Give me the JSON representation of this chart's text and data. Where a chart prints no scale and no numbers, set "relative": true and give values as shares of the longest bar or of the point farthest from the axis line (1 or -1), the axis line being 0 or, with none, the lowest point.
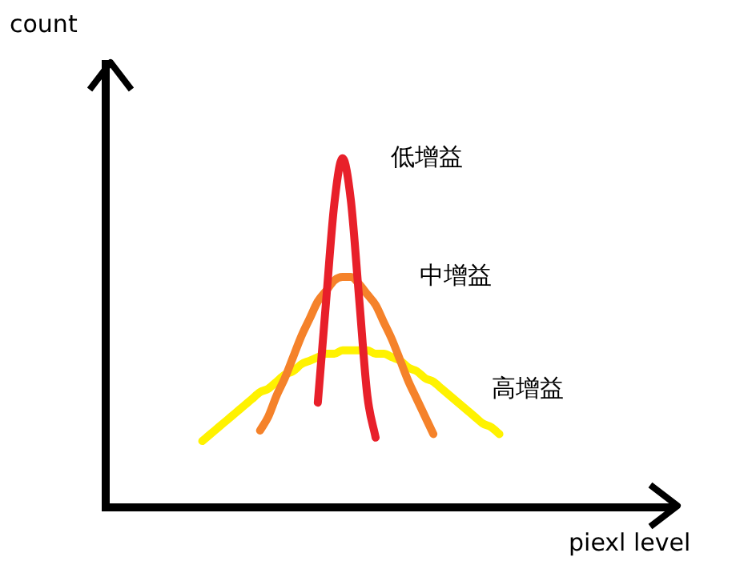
{
  "chart_data": {
    "type": "line",
    "relative": true,
    "xlabel": "piexl level",
    "annotations": [
      "count"
    ],
    "legend": false,
    "grid": false,
    "marker": "none",
    "line_style": "solid",
    "tick_labels": false,
    "categories": [
      null,
      null,
      null,
      null,
      null,
      null,
      null,
      null,
      null,
      null,
      null,
      null,
      null,
      null,
      null,
      null,
      null,
      null,
      null,
      null,
      null,
      null,
      null,
      null,
      null,
      null,
      null,
      null,
      null,
      null,
      null,
      null,
      null,
      null,
      null,
      null,
      null
    ],
    "series": [
      {
        "name": "低增益",
        "color": "#e8202a",
        "values": [
          null,
          null,
          null,
          null,
          null,
          null,
          null,
          null,
          null,
          null,
          null,
          null,
          null,
          null,
          0.3,
          0.59,
          0.87,
          1.0,
          0.88,
          0.6,
          0.32,
          0.2,
          null,
          null,
          null,
          null,
          null,
          null,
          null,
          null,
          null,
          null,
          null,
          null,
          null,
          null,
          null
        ]
      },
      {
        "name": "中增益",
        "color": "#f5822a",
        "values": [
          null,
          null,
          null,
          null,
          null,
          null,
          null,
          0.22,
          0.26,
          0.32,
          0.37,
          0.43,
          0.49,
          0.54,
          0.59,
          0.62,
          0.65,
          0.66,
          0.66,
          0.64,
          0.61,
          0.58,
          0.53,
          0.48,
          0.42,
          0.36,
          0.31,
          0.26,
          0.21,
          null,
          null,
          null,
          null,
          null,
          null,
          null,
          null
        ]
      },
      {
        "name": "高增益",
        "color": "#fff200",
        "values": [
          0.19,
          0.21,
          0.23,
          0.25,
          0.27,
          0.29,
          0.31,
          0.33,
          0.34,
          0.36,
          0.38,
          0.39,
          0.41,
          0.42,
          0.43,
          0.44,
          0.44,
          0.45,
          0.45,
          0.45,
          0.45,
          0.44,
          0.44,
          0.43,
          0.42,
          0.4,
          0.39,
          0.37,
          0.36,
          0.34,
          0.32,
          0.3,
          0.28,
          0.26,
          0.24,
          0.23,
          0.21
        ]
      }
    ]
  }
}
